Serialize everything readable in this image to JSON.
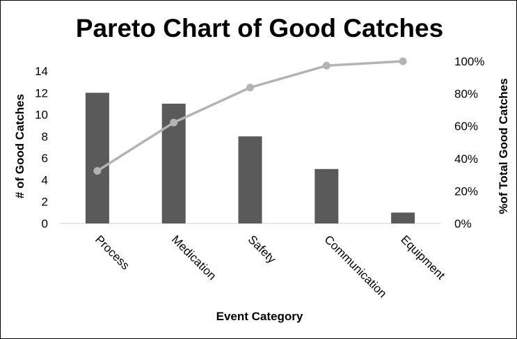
{
  "chart_data": {
    "type": "bar",
    "title": "Pareto Chart of Good Catches",
    "xlabel": "Event Category",
    "ylabel": "# of Good Catches",
    "y2label": "%of Total Good Catches",
    "categories": [
      "Process",
      "Medication",
      "Safety",
      "Communication",
      "Equipment"
    ],
    "series": [
      {
        "type": "bar",
        "values": [
          12,
          11,
          8,
          5,
          1
        ]
      },
      {
        "type": "line",
        "axis": "secondary",
        "values": [
          32.4,
          62.2,
          83.8,
          97.3,
          100
        ]
      }
    ],
    "ylim": [
      0,
      14
    ],
    "yticks": [
      "0",
      "2",
      "4",
      "6",
      "8",
      "10",
      "12",
      "14"
    ],
    "y2lim": [
      0,
      100
    ],
    "y2ticks": [
      "0%",
      "20%",
      "40%",
      "60%",
      "80%",
      "100%"
    ],
    "grid": false,
    "legend": "none",
    "colors": {
      "bar": "#5a5a5a",
      "line": "#b3b3b3",
      "axis": "#d0d0d0"
    }
  }
}
